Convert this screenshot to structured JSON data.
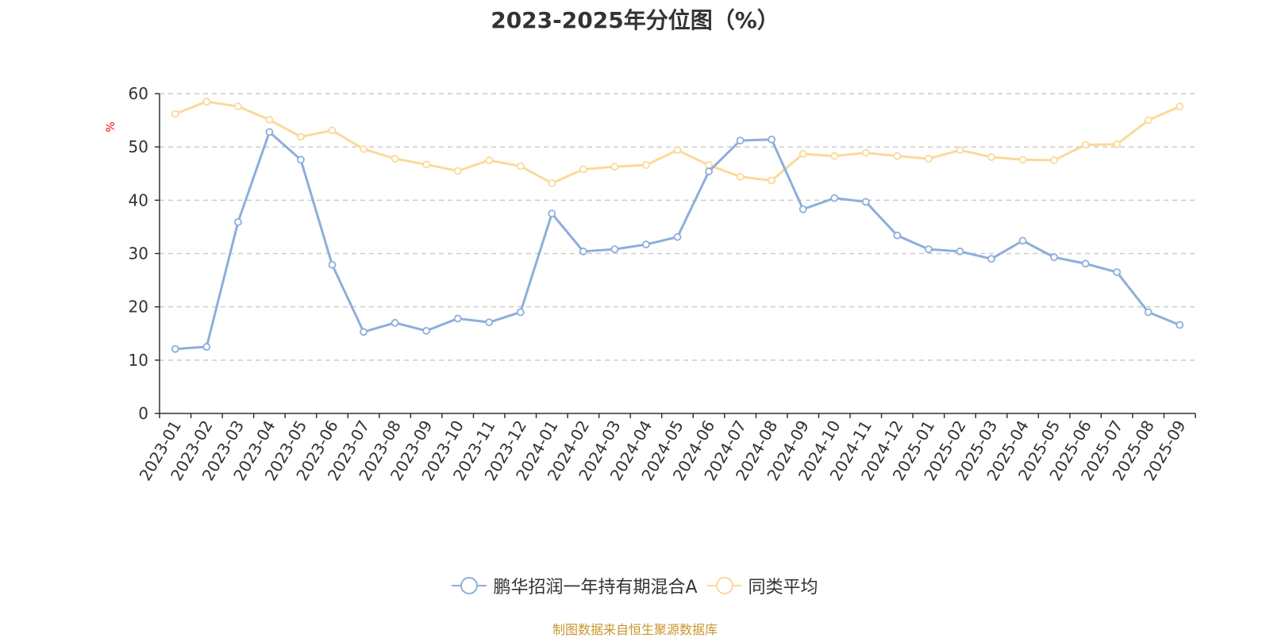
{
  "chart_data": {
    "type": "line",
    "title": "2023-2025年分位图（%）",
    "ylabel": "%",
    "ylim": [
      0,
      60
    ],
    "yticks": [
      0,
      10,
      20,
      30,
      40,
      50,
      60
    ],
    "grid": "dashed horizontal",
    "legend_position": "bottom-center",
    "categories": [
      "2023-01",
      "2023-02",
      "2023-03",
      "2023-04",
      "2023-05",
      "2023-06",
      "2023-07",
      "2023-08",
      "2023-09",
      "2023-10",
      "2023-11",
      "2023-12",
      "2024-01",
      "2024-02",
      "2024-03",
      "2024-04",
      "2024-05",
      "2024-06",
      "2024-07",
      "2024-08",
      "2024-09",
      "2024-10",
      "2024-11",
      "2024-12",
      "2025-01",
      "2025-02",
      "2025-03",
      "2025-04",
      "2025-05",
      "2025-06",
      "2025-07",
      "2025-08",
      "2025-09"
    ],
    "series": [
      {
        "name": "鹏华招润一年持有期混合A",
        "color": "#8eaedb",
        "values": [
          12.1,
          12.5,
          35.9,
          52.8,
          47.6,
          27.9,
          15.3,
          17.0,
          15.5,
          17.8,
          17.1,
          19.0,
          37.5,
          30.4,
          30.8,
          31.7,
          33.1,
          45.4,
          51.2,
          51.4,
          38.3,
          40.4,
          39.7,
          33.4,
          30.8,
          30.4,
          29.0,
          32.4,
          29.3,
          28.1,
          26.5,
          19.0,
          16.6
        ]
      },
      {
        "name": "同类平均",
        "color": "#fbd999",
        "values": [
          56.2,
          58.5,
          57.6,
          55.1,
          51.9,
          53.1,
          49.6,
          47.8,
          46.7,
          45.5,
          47.5,
          46.4,
          43.2,
          45.8,
          46.3,
          46.6,
          49.4,
          46.6,
          44.4,
          43.7,
          48.7,
          48.3,
          48.9,
          48.3,
          47.8,
          49.4,
          48.1,
          47.6,
          47.5,
          50.4,
          50.5,
          55.0,
          57.6
        ]
      }
    ]
  },
  "source_text": "制图数据来自恒生聚源数据库"
}
